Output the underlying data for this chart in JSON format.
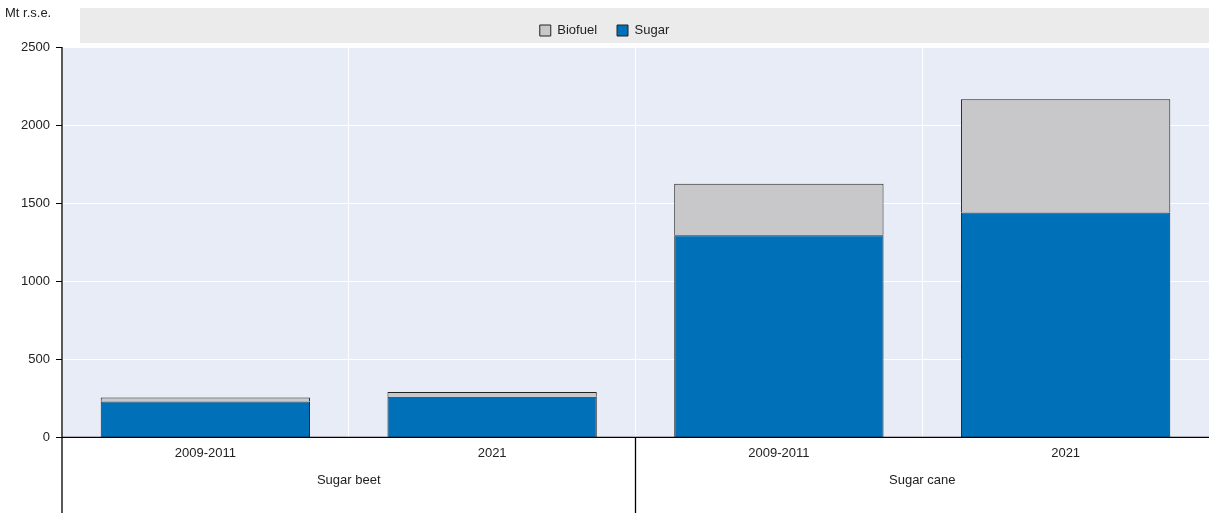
{
  "chart_data": {
    "type": "bar",
    "stacked": true,
    "ylabel": "Mt r.s.e.",
    "categories": [
      "2009-2011",
      "2021",
      "2009-2011",
      "2021"
    ],
    "series": [
      {
        "name": "Sugar",
        "color": "#0070b8",
        "values": [
          230,
          260,
          1295,
          1440
        ]
      },
      {
        "name": "Biofuel",
        "color": "#c8c8ca",
        "values": [
          25,
          30,
          330,
          725
        ]
      }
    ],
    "ylim": [
      0,
      2500
    ],
    "yticks": [
      0,
      500,
      1000,
      1500,
      2000,
      2500
    ],
    "grid": true,
    "legend": "top",
    "annotations": [
      "Sugar beet",
      "Sugar cane"
    ]
  }
}
